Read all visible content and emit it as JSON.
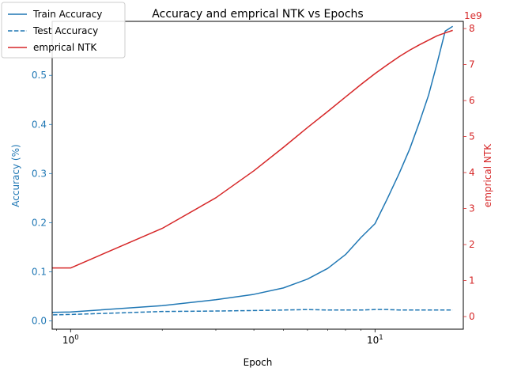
{
  "chart_data": {
    "type": "line",
    "title": "Accuracy and emprical NTK vs Epochs",
    "xlabel": "Epoch",
    "ylabel_left": "Accuracy (%)",
    "ylabel_right": "emprical NTK",
    "right_offset_text": "1e9",
    "x_scale": "log",
    "xlim": [
      0.87,
      19.5
    ],
    "ylim_left": [
      -0.017,
      0.61
    ],
    "ylim_right": [
      -0.35,
      8.2
    ],
    "x_ticks": [
      1,
      10
    ],
    "x_tick_labels": [
      "10^0",
      "10^1"
    ],
    "y_left_ticks": [
      0.0,
      0.1,
      0.2,
      0.3,
      0.4,
      0.5
    ],
    "y_left_tick_labels": [
      "0.0",
      "0.1",
      "0.2",
      "0.3",
      "0.4",
      "0.5"
    ],
    "y_right_ticks": [
      0,
      1,
      2,
      3,
      4,
      5,
      6,
      7,
      8
    ],
    "y_right_tick_labels": [
      "0",
      "1",
      "2",
      "3",
      "4",
      "5",
      "6",
      "7",
      "8"
    ],
    "grid": false,
    "legend_position": "top-left",
    "x": [
      0.6,
      1,
      2,
      3,
      4,
      5,
      6,
      7,
      8,
      9,
      10,
      11,
      12,
      13,
      14,
      15,
      16,
      17,
      18
    ],
    "series": [
      {
        "name": "Train Accuracy",
        "axis": "left",
        "color": "#1f77b4",
        "style": "solid",
        "values": [
          0.015,
          0.018,
          0.031,
          0.043,
          0.054,
          0.067,
          0.085,
          0.107,
          0.135,
          0.17,
          0.198,
          0.25,
          0.3,
          0.35,
          0.405,
          0.46,
          0.525,
          0.59,
          0.6
        ]
      },
      {
        "name": "Test Accuracy",
        "axis": "left",
        "color": "#1f77b4",
        "style": "dashed",
        "values": [
          0.01,
          0.013,
          0.019,
          0.02,
          0.021,
          0.022,
          0.023,
          0.022,
          0.022,
          0.022,
          0.023,
          0.023,
          0.022,
          0.022,
          0.022,
          0.022,
          0.022,
          0.022,
          0.022
        ]
      },
      {
        "name": "emprical NTK",
        "axis": "right",
        "color": "#d62728",
        "style": "solid",
        "values": [
          1.35,
          1.35,
          2.45,
          3.3,
          4.05,
          4.7,
          5.25,
          5.7,
          6.1,
          6.45,
          6.75,
          7.0,
          7.22,
          7.4,
          7.55,
          7.68,
          7.8,
          7.88,
          7.95
        ]
      }
    ]
  },
  "colors": {
    "left_axis": "#1f77b4",
    "right_axis": "#d62728"
  }
}
